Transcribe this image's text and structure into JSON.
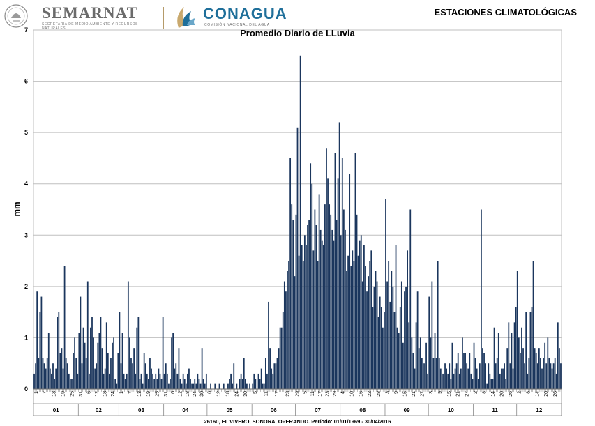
{
  "header": {
    "semarnat_title": "SEMARNAT",
    "semarnat_subtitle": "SECRETARÍA DE MEDIO AMBIENTE Y RECURSOS NATURALES",
    "conagua_title": "CONAGUA",
    "conagua_subtitle": "COMISIÓN NACIONAL DEL AGUA",
    "page_heading": "ESTACIONES CLIMATOLÓGICAS"
  },
  "footer": {
    "note": "26160, EL VIVERO, SONORA, OPERANDO. Período: 01/01/1969 - 30/04/2016"
  },
  "colors": {
    "bar": "#1b365d",
    "grid": "#bfbfbf",
    "text": "#000000",
    "semarnat": "#6b6b6b",
    "conagua": "#1f6f9a"
  },
  "chart_data": {
    "type": "bar",
    "title": "Promedio Diario de LLuvia",
    "ylabel": "mm",
    "ylim": [
      0,
      7
    ],
    "yticks": [
      0,
      1,
      2,
      3,
      4,
      5,
      6,
      7
    ],
    "grid": true,
    "months": [
      {
        "label": "01",
        "days": 31,
        "day_ticks": [
          "1",
          "7",
          "13",
          "19",
          "25"
        ],
        "values": [
          0.3,
          0.5,
          1.9,
          0.6,
          1.5,
          1.8,
          0.6,
          0.5,
          0.4,
          0.6,
          1.1,
          0.4,
          0.3,
          0.5,
          0.2,
          0.4,
          1.4,
          1.5,
          0.7,
          0.8,
          0.4,
          2.4,
          0.6,
          0.5,
          0.3,
          0.2,
          0.2,
          0.7,
          1.0,
          0.6,
          0.3
        ]
      },
      {
        "label": "02",
        "days": 28,
        "day_ticks": [
          "31",
          "6",
          "12",
          "18",
          "24"
        ],
        "values": [
          1.1,
          1.8,
          0.5,
          1.2,
          0.9,
          0.6,
          2.1,
          0.3,
          1.2,
          1.4,
          1.0,
          0.4,
          0.5,
          0.9,
          1.1,
          1.4,
          0.8,
          0.3,
          0.4,
          1.3,
          0.7,
          0.3,
          0.6,
          0.9,
          1.0,
          0.2,
          0.1,
          0.7
        ]
      },
      {
        "label": "03",
        "days": 31,
        "day_ticks": [
          "1",
          "7",
          "13",
          "19",
          "25"
        ],
        "values": [
          1.5,
          0.5,
          1.1,
          0.3,
          0.2,
          0.3,
          2.1,
          1.0,
          0.6,
          0.5,
          0.8,
          0.3,
          1.2,
          1.4,
          0.2,
          0.3,
          0.1,
          0.7,
          0.5,
          0.3,
          0.2,
          0.6,
          0.4,
          0.3,
          0.2,
          0.3,
          0.2,
          0.4,
          0.3,
          0.2,
          1.4
        ]
      },
      {
        "label": "04",
        "days": 30,
        "day_ticks": [
          "31",
          "6",
          "12",
          "18",
          "24",
          "30"
        ],
        "values": [
          0.3,
          0.5,
          0.3,
          0.1,
          0.2,
          1.0,
          1.1,
          0.4,
          0.5,
          0.3,
          0.8,
          0.2,
          0.1,
          0.3,
          0.2,
          0.1,
          0.3,
          0.4,
          0.2,
          0.1,
          0.1,
          0.2,
          0.1,
          0.3,
          0.2,
          0.1,
          0.8,
          0.2,
          0.1,
          0.3
        ]
      },
      {
        "label": "05",
        "days": 31,
        "day_ticks": [
          "6",
          "12",
          "18",
          "24",
          "30"
        ],
        "values": [
          0.0,
          0.0,
          0.1,
          0.0,
          0.0,
          0.1,
          0.0,
          0.0,
          0.1,
          0.0,
          0.0,
          0.1,
          0.0,
          0.0,
          0.1,
          0.2,
          0.3,
          0.1,
          0.5,
          0.0,
          0.1,
          0.0,
          0.2,
          0.3,
          0.2,
          0.6,
          0.2,
          0.1,
          0.0,
          0.1,
          0.0
        ]
      },
      {
        "label": "06",
        "days": 30,
        "day_ticks": [
          "5",
          "11",
          "17",
          "23"
        ],
        "values": [
          0.1,
          0.3,
          0.2,
          0.0,
          0.3,
          0.2,
          0.4,
          0.1,
          0.1,
          0.6,
          0.3,
          1.7,
          0.8,
          0.4,
          0.3,
          0.5,
          0.5,
          0.6,
          0.8,
          1.2,
          1.2,
          1.5,
          2.1,
          1.9,
          2.3,
          2.5,
          4.5,
          3.6,
          3.3,
          2.2
        ]
      },
      {
        "label": "07",
        "days": 31,
        "day_ticks": [
          "29",
          "5",
          "11",
          "17",
          "23",
          "29"
        ],
        "values": [
          3.4,
          5.1,
          2.6,
          6.5,
          2.8,
          2.5,
          3.0,
          2.8,
          3.2,
          3.3,
          4.4,
          4.0,
          2.7,
          3.5,
          3.2,
          2.5,
          3.8,
          3.1,
          2.9,
          2.8,
          3.6,
          4.7,
          4.1,
          3.6,
          3.4,
          3.1,
          2.9,
          4.6,
          3.3,
          4.1,
          5.2
        ]
      },
      {
        "label": "08",
        "days": 31,
        "day_ticks": [
          "4",
          "10",
          "16",
          "22",
          "28"
        ],
        "values": [
          3.0,
          4.5,
          3.5,
          3.1,
          2.3,
          2.6,
          4.2,
          2.4,
          2.7,
          2.5,
          4.6,
          3.4,
          2.6,
          2.9,
          3.0,
          2.1,
          2.8,
          2.4,
          1.9,
          2.2,
          2.5,
          2.7,
          1.6,
          2.0,
          2.3,
          2.1,
          1.4,
          1.8,
          1.6,
          1.2,
          1.5
        ]
      },
      {
        "label": "09",
        "days": 30,
        "day_ticks": [
          "3",
          "9",
          "15",
          "21",
          "27"
        ],
        "values": [
          3.7,
          2.1,
          2.5,
          1.7,
          2.3,
          2.0,
          1.5,
          2.8,
          1.2,
          1.1,
          1.6,
          2.1,
          0.9,
          1.9,
          2.0,
          2.7,
          1.3,
          3.5,
          1.0,
          0.7,
          0.4,
          1.3,
          1.9,
          0.8,
          1.0,
          0.6,
          0.5,
          0.5,
          0.9,
          0.3
        ]
      },
      {
        "label": "10",
        "days": 31,
        "day_ticks": [
          "3",
          "9",
          "15",
          "21",
          "27"
        ],
        "values": [
          1.8,
          1.0,
          2.1,
          0.6,
          1.1,
          0.6,
          2.5,
          0.6,
          0.4,
          0.3,
          0.3,
          0.5,
          0.4,
          0.3,
          0.5,
          0.2,
          0.9,
          0.3,
          0.4,
          0.5,
          0.7,
          0.3,
          0.4,
          1.0,
          0.7,
          0.7,
          0.5,
          0.4,
          0.7,
          0.3,
          0.2
        ]
      },
      {
        "label": "11",
        "days": 30,
        "day_ticks": [
          "2",
          "8",
          "14",
          "20",
          "26"
        ],
        "values": [
          0.9,
          0.6,
          0.4,
          0.2,
          0.5,
          3.5,
          0.8,
          0.7,
          0.5,
          0.1,
          0.5,
          0.3,
          0.2,
          0.2,
          1.2,
          0.5,
          0.6,
          1.1,
          0.3,
          0.4,
          0.4,
          0.5,
          0.2,
          0.8,
          1.3,
          0.5,
          1.1,
          0.4,
          1.3,
          1.6
        ]
      },
      {
        "label": "12",
        "days": 31,
        "day_ticks": [
          "2",
          "8",
          "14",
          "20",
          "26"
        ],
        "values": [
          2.3,
          1.0,
          0.7,
          1.2,
          0.8,
          0.5,
          1.5,
          0.3,
          0.6,
          1.5,
          1.6,
          2.5,
          0.8,
          0.7,
          0.5,
          0.8,
          0.6,
          0.4,
          0.6,
          0.9,
          0.5,
          1.0,
          0.6,
          0.5,
          0.4,
          0.5,
          0.6,
          0.3,
          1.3,
          0.8,
          0.5
        ]
      }
    ]
  }
}
